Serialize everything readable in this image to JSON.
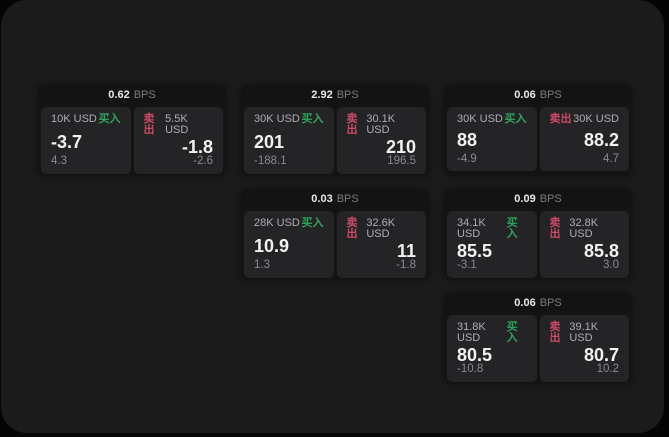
{
  "theme": {
    "outer_bg": "#050505",
    "page_bg": "#1b1b1c",
    "card_bg": "#131314",
    "panel_bg": "#242427",
    "buy_green": "#2fa35c",
    "sell_red": "#cc4a66",
    "text_primary": "#f2f2f3",
    "text_secondary": "#aeaeb2",
    "text_muted": "#8a8a8e"
  },
  "labels": {
    "bps": "BPS",
    "buy": "买入",
    "sell": "卖出"
  },
  "cards": [
    {
      "bps": "0.62",
      "buy": {
        "size": "10K USD",
        "price": "-3.7",
        "delta": "4.3"
      },
      "sell": {
        "size": "5.5K USD",
        "price": "-1.8",
        "delta": "-2.6"
      }
    },
    {
      "bps": "2.92",
      "buy": {
        "size": "30K USD",
        "price": "201",
        "delta": "-188.1"
      },
      "sell": {
        "size": "30.1K USD",
        "price": "210",
        "delta": "196.5"
      }
    },
    {
      "bps": "0.06",
      "buy": {
        "size": "30K USD",
        "price": "88",
        "delta": "-4.9"
      },
      "sell": {
        "size": "30K USD",
        "price": "88.2",
        "delta": "4.7"
      }
    },
    {
      "bps": "0.03",
      "buy": {
        "size": "28K USD",
        "price": "10.9",
        "delta": "1.3"
      },
      "sell": {
        "size": "32.6K USD",
        "price": "11",
        "delta": "-1.8"
      }
    },
    {
      "bps": "0.09",
      "buy": {
        "size": "34.1K USD",
        "price": "85.5",
        "delta": "-3.1"
      },
      "sell": {
        "size": "32.8K USD",
        "price": "85.8",
        "delta": "3.0"
      }
    },
    {
      "bps": "0.06",
      "buy": {
        "size": "31.8K USD",
        "price": "80.5",
        "delta": "-10.8"
      },
      "sell": {
        "size": "39.1K USD",
        "price": "80.7",
        "delta": "10.2"
      }
    }
  ]
}
